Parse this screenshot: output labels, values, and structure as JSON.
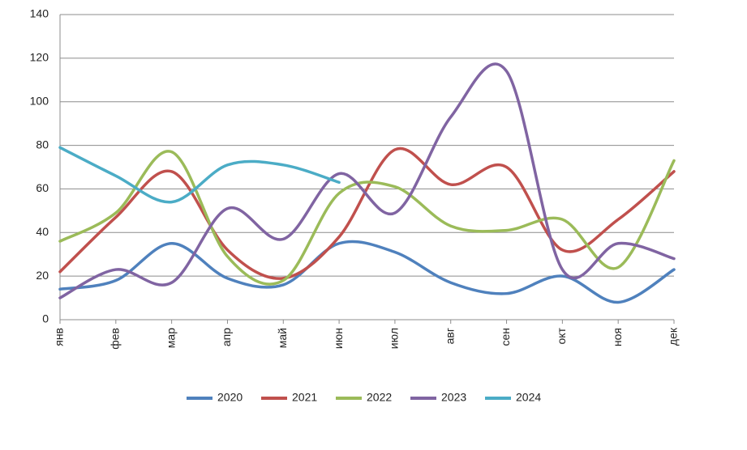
{
  "chart_data": {
    "type": "line",
    "categories": [
      "янв",
      "фев",
      "мар",
      "апр",
      "май",
      "июн",
      "июл",
      "авг",
      "сен",
      "окт",
      "ноя",
      "дек"
    ],
    "series": [
      {
        "name": "2020",
        "color": "#4f81bd",
        "values": [
          14,
          18,
          35,
          19,
          16,
          35,
          31,
          17,
          12,
          20,
          8,
          23
        ]
      },
      {
        "name": "2021",
        "color": "#c0504d",
        "values": [
          22,
          47,
          68,
          32,
          19,
          38,
          78,
          62,
          70,
          32,
          46,
          68
        ]
      },
      {
        "name": "2022",
        "color": "#9bbb59",
        "values": [
          36,
          49,
          77,
          29,
          18,
          58,
          61,
          43,
          41,
          46,
          24,
          73
        ]
      },
      {
        "name": "2023",
        "color": "#8064a2",
        "values": [
          10,
          23,
          17,
          51,
          37,
          67,
          49,
          93,
          114,
          23,
          35,
          28
        ]
      },
      {
        "name": "2024",
        "color": "#4bacc6",
        "values": [
          79,
          66,
          54,
          71,
          71,
          63,
          null,
          null,
          null,
          null,
          null,
          null
        ]
      }
    ],
    "ylim": [
      0,
      140
    ],
    "yticks": [
      0,
      20,
      40,
      60,
      80,
      100,
      120,
      140
    ],
    "grid": true,
    "smooth": true,
    "legend": "bottom"
  }
}
